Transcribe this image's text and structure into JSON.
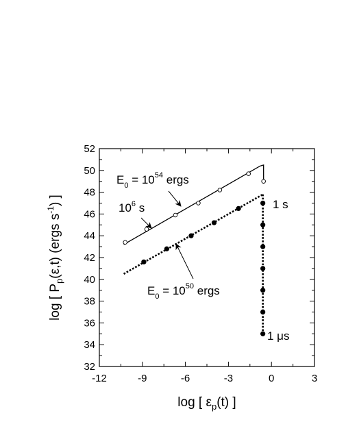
{
  "chart_data": {
    "type": "line",
    "xlabel": "log [ ε_p(t) ]",
    "ylabel": "log [ P_p(ε,t) (ergs s^-1) ]",
    "xlim": [
      -12,
      3
    ],
    "ylim": [
      32,
      52
    ],
    "x_ticks": [
      "-12",
      "-9",
      "-6",
      "-3",
      "0",
      "3"
    ],
    "y_ticks": [
      "32",
      "34",
      "36",
      "38",
      "40",
      "42",
      "44",
      "46",
      "48",
      "50",
      "52"
    ],
    "series": [
      {
        "style": "solid",
        "marker": "open-circle",
        "line": [
          [
            -10.3,
            43.2
          ],
          [
            -0.8,
            50.4
          ],
          [
            -0.55,
            50.5
          ],
          [
            -0.55,
            49.2
          ]
        ],
        "points": [
          [
            -10.2,
            43.4
          ],
          [
            -8.7,
            44.6
          ],
          [
            -6.7,
            45.9
          ],
          [
            -5.1,
            47.0
          ],
          [
            -3.6,
            48.2
          ],
          [
            -1.6,
            49.7
          ],
          [
            -0.55,
            49.0
          ]
        ]
      },
      {
        "style": "dotted",
        "marker": "filled-circle",
        "line": [
          [
            -10.3,
            40.5
          ],
          [
            -0.6,
            47.8
          ]
        ],
        "points": [
          [
            -8.9,
            41.6
          ],
          [
            -7.3,
            42.8
          ],
          [
            -5.6,
            44.0
          ],
          [
            -4.0,
            45.2
          ],
          [
            -2.3,
            46.5
          ]
        ]
      },
      {
        "style": "dotted",
        "marker": "filled-circle",
        "line": [
          [
            -0.6,
            47.8
          ],
          [
            -0.6,
            35.0
          ]
        ],
        "points": [
          [
            -0.6,
            47.0
          ],
          [
            -0.6,
            45.0
          ],
          [
            -0.6,
            43.0
          ],
          [
            -0.6,
            41.0
          ],
          [
            -0.6,
            39.0
          ],
          [
            -0.6,
            37.0
          ],
          [
            -0.6,
            35.0
          ]
        ]
      }
    ],
    "annotations": {
      "e54": {
        "base": "E",
        "sub": "0",
        "mid": " = 10",
        "sup": "54",
        "end": " ergs"
      },
      "e50": {
        "base": "E",
        "sub": "0",
        "mid": " = 10",
        "sup": "50",
        "end": " ergs"
      },
      "t6": {
        "base": "10",
        "sup": "6",
        "end": " s"
      },
      "t1s": "1 s",
      "t1us": "1 μs"
    }
  }
}
